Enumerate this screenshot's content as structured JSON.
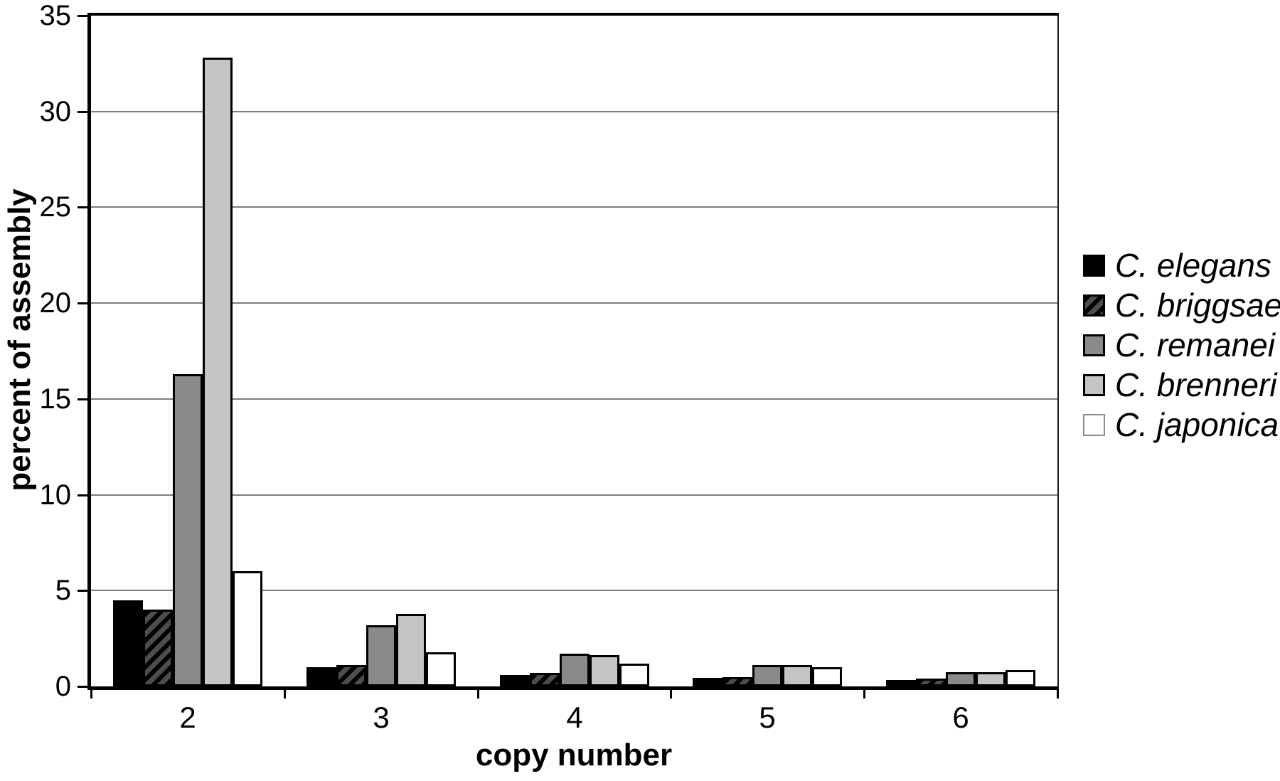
{
  "chart_data": {
    "type": "bar",
    "title": "",
    "xlabel": "copy number",
    "ylabel": "percent of assembly",
    "categories": [
      "2",
      "3",
      "4",
      "5",
      "6"
    ],
    "series": [
      {
        "name": "C. elegans",
        "fill": "#000000",
        "pattern": "solid",
        "values": [
          4.5,
          1.0,
          0.6,
          0.45,
          0.35
        ]
      },
      {
        "name": "C. briggsae",
        "fill": "#4d4d4d",
        "pattern": "diagonal-hatch",
        "stripe": "#000000",
        "values": [
          4.0,
          1.1,
          0.7,
          0.5,
          0.4
        ]
      },
      {
        "name": "C. remanei",
        "fill": "#8a8a8a",
        "pattern": "solid",
        "values": [
          16.3,
          3.2,
          1.7,
          1.1,
          0.75
        ]
      },
      {
        "name": "C. brenneri",
        "fill": "#c4c4c4",
        "pattern": "solid",
        "values": [
          32.8,
          3.8,
          1.65,
          1.1,
          0.75
        ]
      },
      {
        "name": "C. japonica",
        "fill": "#ffffff",
        "pattern": "solid",
        "values": [
          6.0,
          1.8,
          1.2,
          1.0,
          0.85
        ]
      }
    ],
    "ylim": [
      0,
      35
    ],
    "ytick_interval": 5,
    "yticks": [
      "0",
      "5",
      "10",
      "15",
      "20",
      "25",
      "30",
      "35"
    ],
    "grid": "horizontal-only",
    "legend_position": "right",
    "legend_text_style": "italic"
  },
  "colors": {
    "background": "#ffffff",
    "bar_border": "#000000",
    "grid_color": "#7d7d7d",
    "axis_color": "#000000",
    "japonica_swatch_border": "#8c8c8c"
  }
}
